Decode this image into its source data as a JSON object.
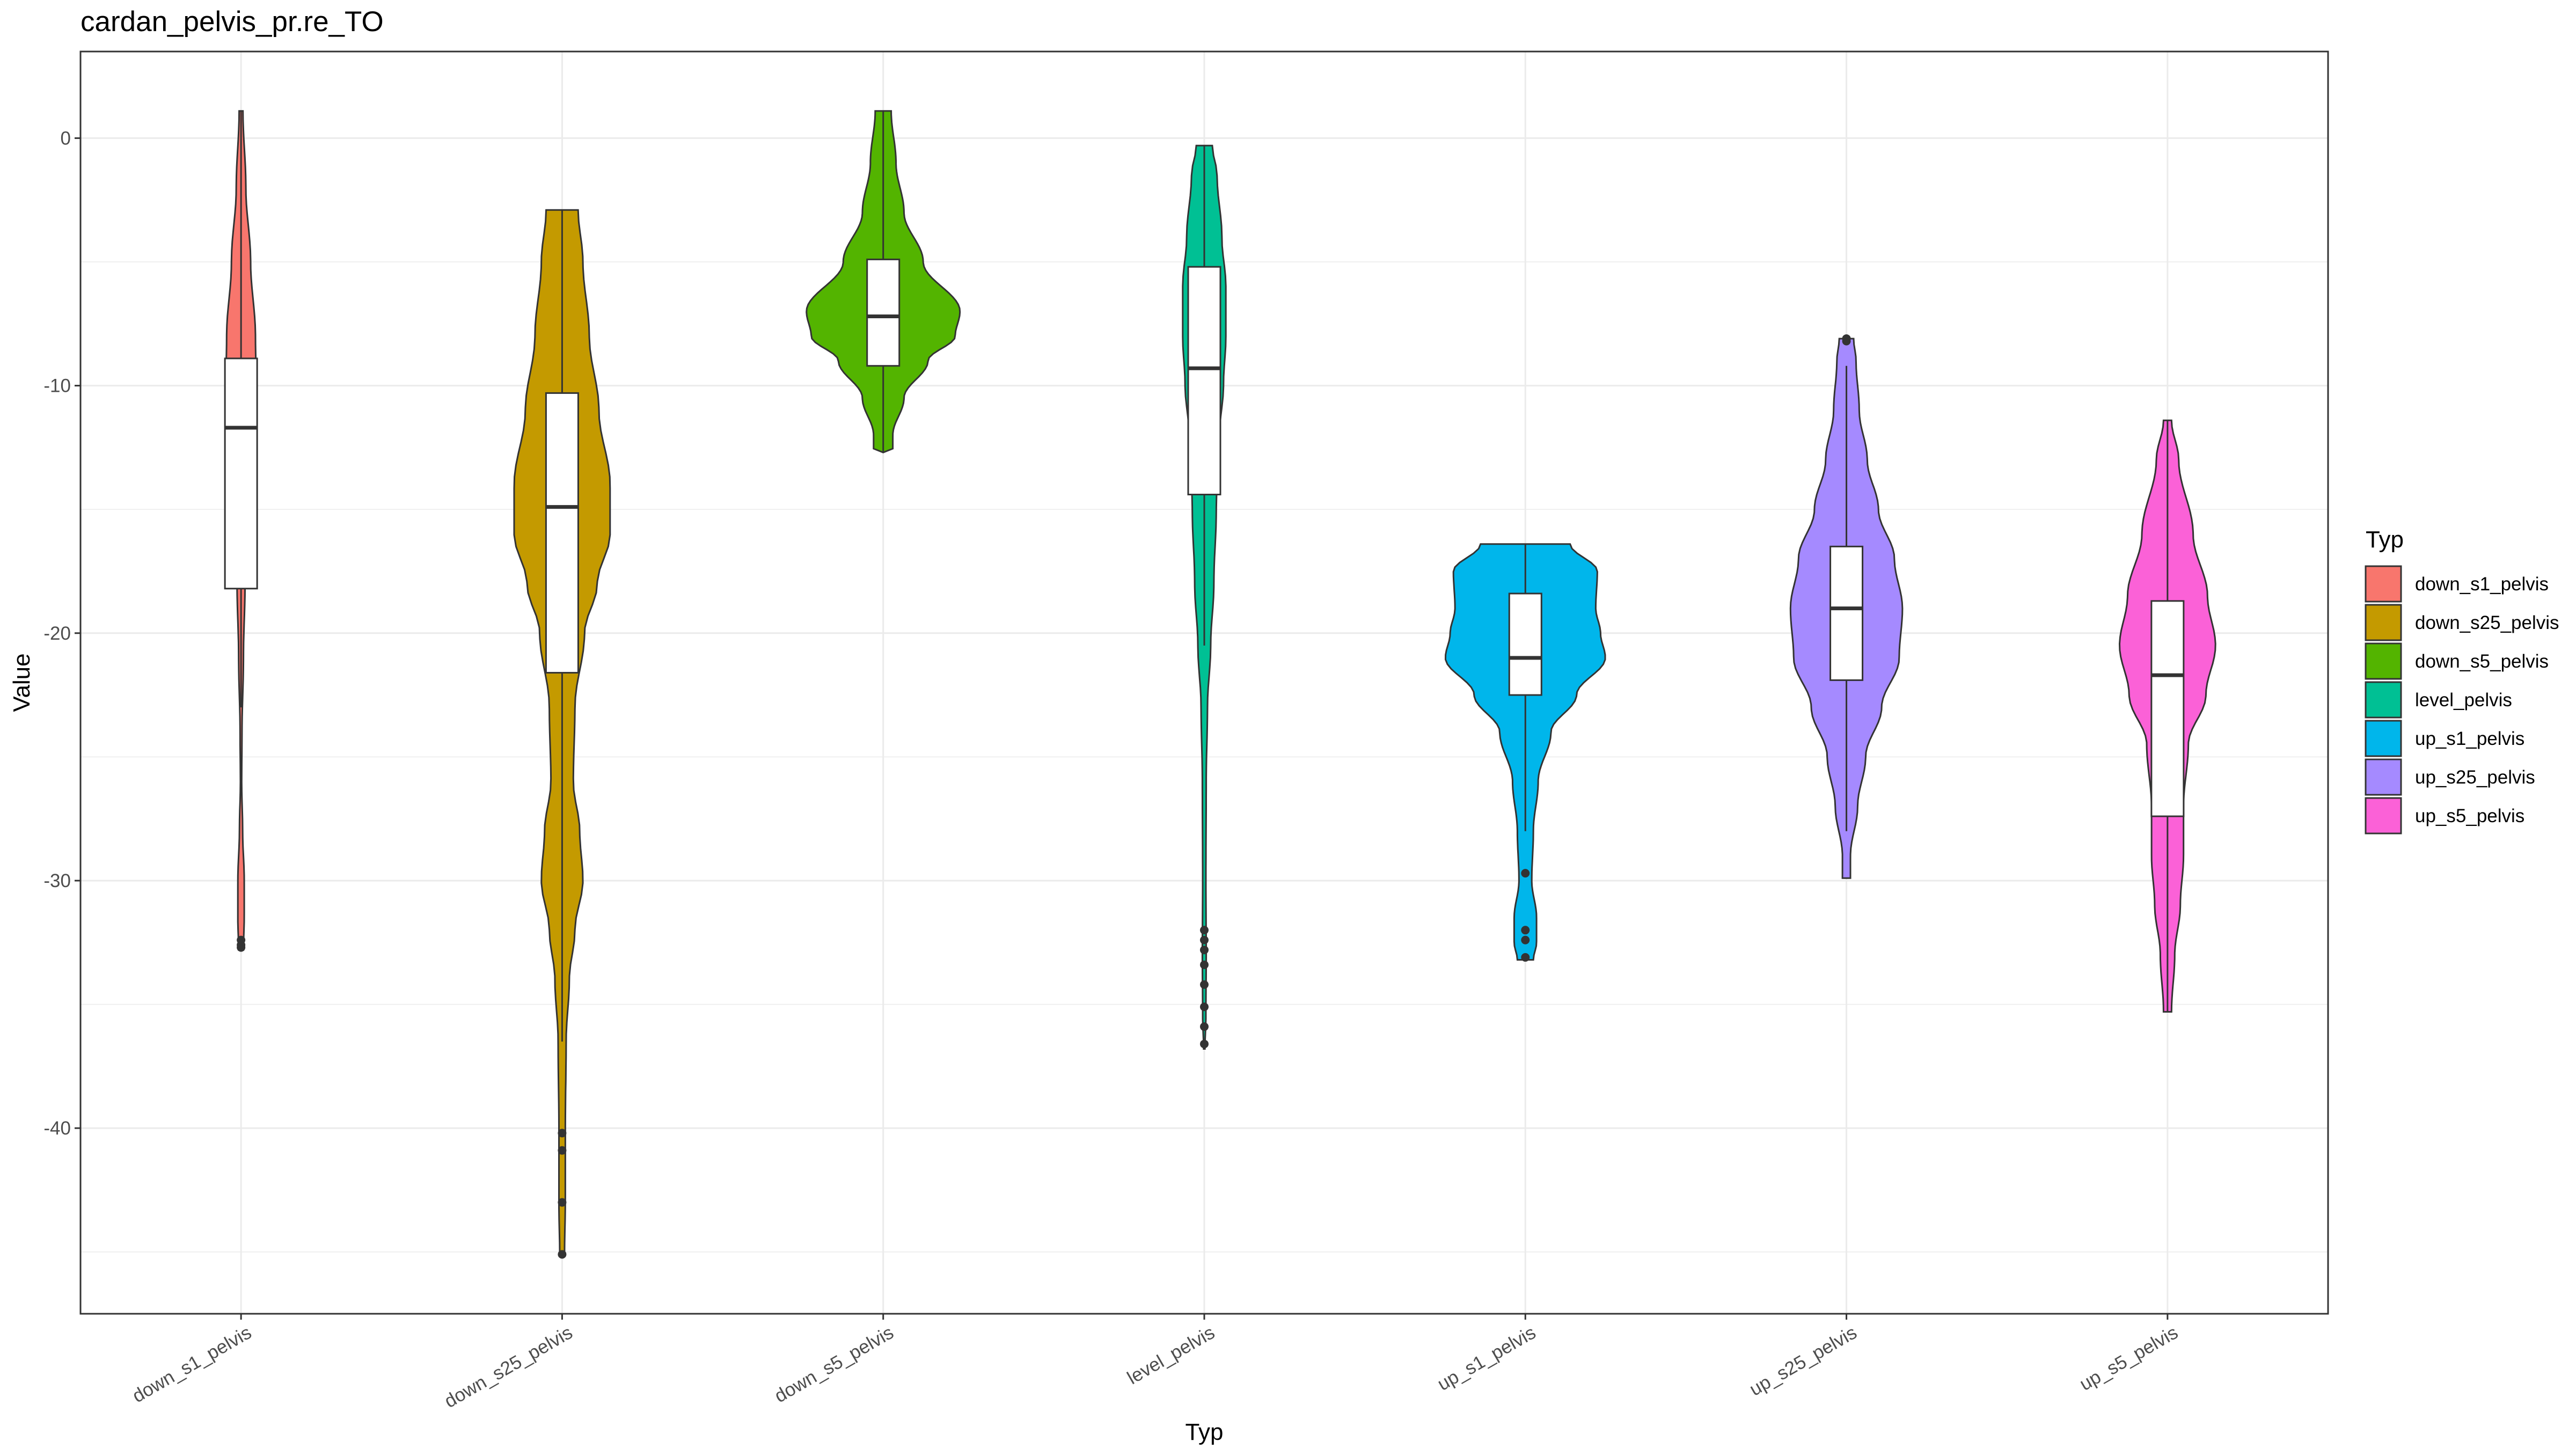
{
  "chart_data": {
    "type": "violin",
    "title": "cardan_pelvis_pr.re_TO",
    "xlabel": "Typ",
    "ylabel": "Value",
    "ylim": [
      -47.5,
      3.5
    ],
    "yticks": [
      0,
      -10,
      -20,
      -30,
      -40
    ],
    "ytick_labels": [
      "0",
      "-10",
      "-20",
      "-30",
      "-40"
    ],
    "grid": true,
    "legend": {
      "title": "Typ",
      "position": "right"
    },
    "categories": [
      "down_s1_pelvis",
      "down_s25_pelvis",
      "down_s5_pelvis",
      "level_pelvis",
      "up_s1_pelvis",
      "up_s25_pelvis",
      "up_s5_pelvis"
    ],
    "series": [
      {
        "name": "down_s1_pelvis",
        "color": "#F8766D",
        "box": {
          "min": -23,
          "q1": -18.2,
          "median": -11.7,
          "q3": -8.9,
          "max": 1.1
        },
        "outliers": [
          -32.4,
          -32.6,
          -32.7
        ],
        "density": [
          [
            1.1,
            0.012
          ],
          [
            -2,
            0.03
          ],
          [
            -5,
            0.06
          ],
          [
            -8,
            0.09
          ],
          [
            -10,
            0.095
          ],
          [
            -12,
            0.08
          ],
          [
            -15,
            0.035
          ],
          [
            -18,
            0.025
          ],
          [
            -21,
            0.015
          ],
          [
            -24,
            0.006
          ],
          [
            -26,
            0.004
          ],
          [
            -28,
            0.01
          ],
          [
            -30,
            0.02
          ],
          [
            -31.5,
            0.02
          ],
          [
            -32.8,
            0.015
          ]
        ]
      },
      {
        "name": "down_s25_pelvis",
        "color": "#C49A00",
        "box": {
          "min": -36.5,
          "q1": -21.6,
          "median": -14.9,
          "q3": -10.3,
          "max": -2.9
        },
        "outliers": [
          -40.2,
          -40.9,
          -43.0,
          -45.1
        ],
        "density": [
          [
            -2.9,
            0.1
          ],
          [
            -5,
            0.13
          ],
          [
            -8,
            0.17
          ],
          [
            -11,
            0.23
          ],
          [
            -14,
            0.3
          ],
          [
            -16,
            0.3
          ],
          [
            -18,
            0.22
          ],
          [
            -20,
            0.14
          ],
          [
            -23,
            0.08
          ],
          [
            -26,
            0.07
          ],
          [
            -28,
            0.11
          ],
          [
            -30,
            0.13
          ],
          [
            -32,
            0.08
          ],
          [
            -34,
            0.045
          ],
          [
            -36.5,
            0.025
          ],
          [
            -40,
            0.02
          ],
          [
            -43,
            0.02
          ],
          [
            -45.1,
            0.015
          ]
        ]
      },
      {
        "name": "down_s5_pelvis",
        "color": "#53B400",
        "box": {
          "min": -12.7,
          "q1": -9.2,
          "median": -7.2,
          "q3": -4.9,
          "max": 1.1
        },
        "outliers": [],
        "density": [
          [
            1.1,
            0.05
          ],
          [
            -1,
            0.08
          ],
          [
            -3,
            0.13
          ],
          [
            -5,
            0.25
          ],
          [
            -7,
            0.48
          ],
          [
            -8,
            0.45
          ],
          [
            -9,
            0.28
          ],
          [
            -10.5,
            0.13
          ],
          [
            -12,
            0.06
          ],
          [
            -12.7,
            0.06
          ]
        ]
      },
      {
        "name": "level_pelvis",
        "color": "#00C094",
        "box": {
          "min": -20.5,
          "q1": -14.4,
          "median": -9.3,
          "q3": -5.2,
          "max": -0.3
        },
        "outliers": [
          -32.0,
          -32.4,
          -32.8,
          -33.4,
          -34.2,
          -35.1,
          -35.9,
          -36.6
        ],
        "density": [
          [
            -0.3,
            0.05
          ],
          [
            -1.5,
            0.08
          ],
          [
            -4,
            0.11
          ],
          [
            -6,
            0.135
          ],
          [
            -8,
            0.135
          ],
          [
            -10,
            0.12
          ],
          [
            -12,
            0.095
          ],
          [
            -15,
            0.075
          ],
          [
            -18,
            0.06
          ],
          [
            -20.5,
            0.04
          ],
          [
            -23,
            0.02
          ],
          [
            -26,
            0.012
          ],
          [
            -30,
            0.01
          ],
          [
            -33,
            0.012
          ],
          [
            -35.5,
            0.01
          ],
          [
            -36.8,
            0.004
          ]
        ]
      },
      {
        "name": "up_s1_pelvis",
        "color": "#00B6EB",
        "box": {
          "min": -28.0,
          "q1": -22.5,
          "median": -21.0,
          "q3": -18.4,
          "max": -16.4
        },
        "outliers": [
          -29.7,
          -32.0,
          -32.4,
          -33.1
        ],
        "density": [
          [
            -16.4,
            0.28
          ],
          [
            -17.5,
            0.45
          ],
          [
            -19,
            0.44
          ],
          [
            -20,
            0.47
          ],
          [
            -21,
            0.5
          ],
          [
            -22.5,
            0.32
          ],
          [
            -24,
            0.16
          ],
          [
            -26,
            0.08
          ],
          [
            -28,
            0.05
          ],
          [
            -30,
            0.04
          ],
          [
            -31.5,
            0.07
          ],
          [
            -32.5,
            0.07
          ],
          [
            -33.2,
            0.05
          ]
        ]
      },
      {
        "name": "up_s25_pelvis",
        "color": "#A58AFF",
        "box": {
          "min": -28.0,
          "q1": -21.9,
          "median": -19.0,
          "q3": -16.5,
          "max": -9.2
        },
        "outliers": [
          -8.1,
          -8.2
        ],
        "density": [
          [
            -8.1,
            0.045
          ],
          [
            -9,
            0.06
          ],
          [
            -11,
            0.08
          ],
          [
            -13,
            0.13
          ],
          [
            -15,
            0.2
          ],
          [
            -17,
            0.3
          ],
          [
            -19,
            0.35
          ],
          [
            -21,
            0.33
          ],
          [
            -23,
            0.22
          ],
          [
            -25,
            0.12
          ],
          [
            -27,
            0.07
          ],
          [
            -29,
            0.025
          ],
          [
            -29.9,
            0.025
          ]
        ]
      },
      {
        "name": "up_s5_pelvis",
        "color": "#FB61D7",
        "box": {
          "min": -35.3,
          "q1": -27.4,
          "median": -21.7,
          "q3": -18.7,
          "max": -11.4
        },
        "outliers": [],
        "density": [
          [
            -11.4,
            0.025
          ],
          [
            -13,
            0.07
          ],
          [
            -16,
            0.16
          ],
          [
            -18.5,
            0.25
          ],
          [
            -20.5,
            0.3
          ],
          [
            -22.5,
            0.24
          ],
          [
            -24.5,
            0.13
          ],
          [
            -27,
            0.1
          ],
          [
            -29,
            0.1
          ],
          [
            -31,
            0.08
          ],
          [
            -33,
            0.045
          ],
          [
            -35.3,
            0.025
          ]
        ]
      }
    ]
  }
}
